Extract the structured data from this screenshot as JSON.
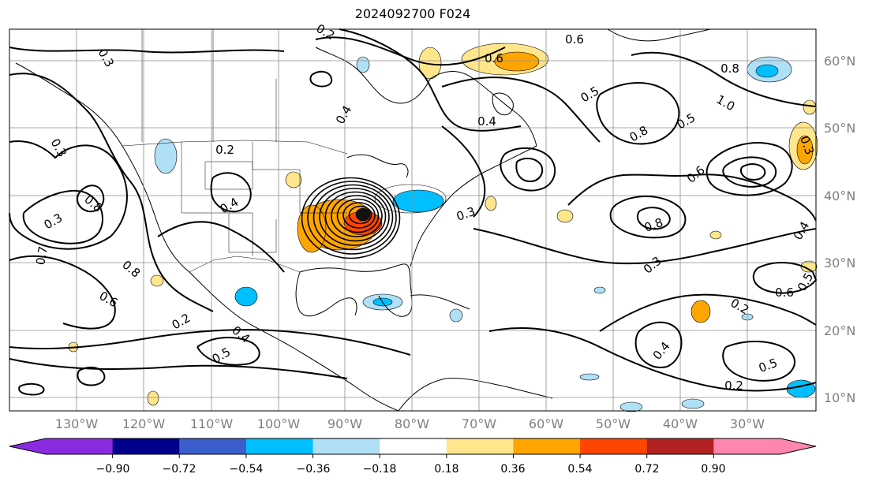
{
  "title": "2024092700 F024",
  "lat_labels": [
    "60°N",
    "50°N",
    "40°N",
    "30°N",
    "20°N",
    "10°N"
  ],
  "lon_labels": [
    "130°W",
    "120°W",
    "110°W",
    "100°W",
    "90°W",
    "80°W",
    "70°W",
    "60°W",
    "50°W",
    "40°W",
    "30°W"
  ],
  "colorbar": {
    "tick_labels": [
      "−0.90",
      "−0.72",
      "−0.54",
      "−0.36",
      "−0.18",
      "0.18",
      "0.36",
      "0.54",
      "0.72",
      "0.90"
    ],
    "colors": [
      "#8a2be2",
      "#00008b",
      "#3a5fcd",
      "#00bfff",
      "#b0e0f6",
      "#ffffff",
      "#ffe68c",
      "#ffa500",
      "#ff4500",
      "#b22222",
      "#ff86b0"
    ],
    "under_color": "#8a2be2",
    "over_color": "#ff86b0"
  },
  "contour_labels": [
    "0.3",
    "0.3",
    "0.3",
    "0.7",
    "0.6",
    "0.8",
    "0.8",
    "0.2",
    "0.4",
    "0.2",
    "0.5",
    "0.4",
    "0.4",
    "0.2",
    "0.6",
    "0.6",
    "0.5",
    "0.8",
    "1.0",
    "0.5",
    "0.8",
    "0.4",
    "0.6",
    "0.3",
    "0.3",
    "0.8",
    "0.4",
    "0.6",
    "0.5",
    "0.2",
    "0.2",
    "0.5",
    "0.4",
    "0.3"
  ],
  "legend_note": ""
}
